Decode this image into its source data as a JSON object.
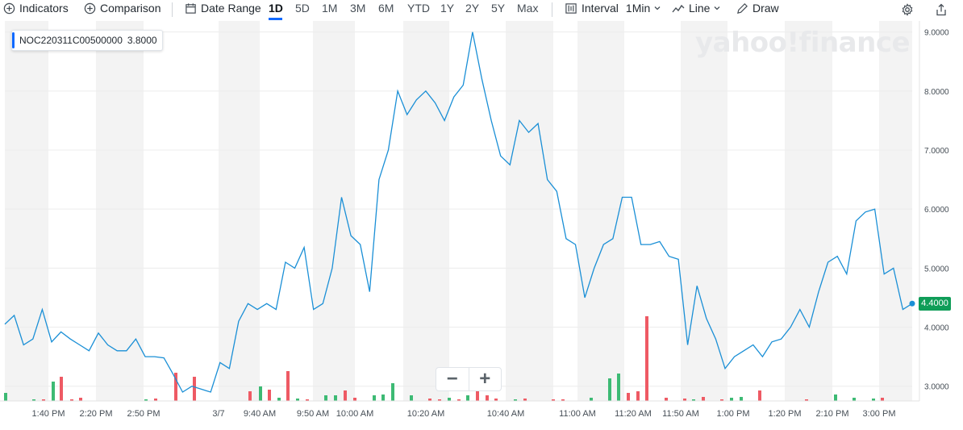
{
  "toolbar": {
    "indicators": "Indicators",
    "comparison": "Comparison",
    "date_range": "Date Range",
    "ranges": [
      "1D",
      "5D",
      "1M",
      "3M",
      "6M",
      "YTD",
      "1Y",
      "2Y",
      "5Y",
      "Max"
    ],
    "active_range": "1D",
    "interval_label": "Interval",
    "interval_value": "1Min",
    "chart_type": "Line",
    "draw": "Draw"
  },
  "legend": {
    "symbol": "NOC220311C00500000",
    "value": "3.8000"
  },
  "brand": "yahoo!finance",
  "last_price": "4.4000",
  "colors": {
    "line": "#1a8fd6",
    "up": "#3dba74",
    "down": "#ee5a64",
    "band": "#f3f3f3",
    "accent": "#0f69ff"
  },
  "chart_data": {
    "type": "line",
    "y_ticks": [
      "9.0000",
      "8.0000",
      "7.0000",
      "6.0000",
      "5.0000",
      "4.0000",
      "3.0000"
    ],
    "ylim": [
      2.75,
      9.05
    ],
    "x_ticks": [
      "1:40 PM",
      "2:20 PM",
      "2:50 PM",
      "3/7",
      "9:40 AM",
      "9:50 AM",
      "10:00 AM",
      "10:20 AM",
      "10:40 AM",
      "11:00 AM",
      "11:20 AM",
      "11:50 AM",
      "1:00 PM",
      "1:20 PM",
      "2:10 PM",
      "3:00 PM"
    ],
    "series": [
      {
        "values": [
          4.05,
          4.2,
          3.7,
          3.8,
          4.3,
          3.75,
          3.92,
          3.8,
          3.7,
          3.6,
          3.9,
          3.7,
          3.6,
          3.6,
          3.8,
          3.5,
          3.5,
          3.48,
          3.2,
          2.9,
          3.0,
          2.95,
          2.9,
          3.4,
          3.3,
          4.1,
          4.4,
          4.3,
          4.4,
          4.3,
          5.1,
          5.0,
          5.35,
          4.3,
          4.4,
          5.0,
          6.2,
          5.55,
          5.4,
          4.6,
          6.5,
          7.0,
          8.0,
          7.6,
          7.85,
          8.0,
          7.8,
          7.5,
          7.9,
          8.1,
          9.0,
          8.2,
          7.5,
          6.9,
          6.75,
          7.5,
          7.3,
          7.45,
          6.5,
          6.3,
          5.5,
          5.4,
          4.5,
          5.0,
          5.4,
          5.5,
          6.2,
          6.2,
          5.4,
          5.4,
          5.45,
          5.2,
          5.15,
          3.7,
          4.7,
          4.15,
          3.8,
          3.3,
          3.5,
          3.6,
          3.7,
          3.5,
          3.75,
          3.8,
          4.0,
          4.3,
          4.0,
          4.6,
          5.1,
          5.2,
          4.9,
          5.8,
          5.95,
          6.0,
          4.9,
          5.0,
          4.3,
          4.4
        ]
      }
    ],
    "volume": [
      {
        "x": 7,
        "h": 10,
        "up": true
      },
      {
        "x": 42,
        "h": 2,
        "up": true
      },
      {
        "x": 54,
        "h": 2,
        "up": false
      },
      {
        "x": 66,
        "h": 24,
        "up": true
      },
      {
        "x": 76,
        "h": 30,
        "up": false
      },
      {
        "x": 89,
        "h": 2,
        "up": false
      },
      {
        "x": 100,
        "h": 4,
        "up": false
      },
      {
        "x": 181,
        "h": 2,
        "up": true
      },
      {
        "x": 193,
        "h": 3,
        "up": false
      },
      {
        "x": 218,
        "h": 35,
        "up": false
      },
      {
        "x": 241,
        "h": 30,
        "up": false
      },
      {
        "x": 310,
        "h": 12,
        "up": false
      },
      {
        "x": 323,
        "h": 18,
        "up": true
      },
      {
        "x": 334,
        "h": 14,
        "up": false
      },
      {
        "x": 346,
        "h": 4,
        "up": true
      },
      {
        "x": 357,
        "h": 37,
        "up": false
      },
      {
        "x": 369,
        "h": 3,
        "up": true
      },
      {
        "x": 381,
        "h": 2,
        "up": false
      },
      {
        "x": 404,
        "h": 7,
        "up": true
      },
      {
        "x": 416,
        "h": 7,
        "up": true
      },
      {
        "x": 428,
        "h": 13,
        "up": false
      },
      {
        "x": 440,
        "h": 4,
        "up": false
      },
      {
        "x": 464,
        "h": 7,
        "up": true
      },
      {
        "x": 475,
        "h": 8,
        "up": true
      },
      {
        "x": 487,
        "h": 22,
        "up": true
      },
      {
        "x": 510,
        "h": 7,
        "up": true
      },
      {
        "x": 533,
        "h": 3,
        "up": false
      },
      {
        "x": 545,
        "h": 2,
        "up": false
      },
      {
        "x": 557,
        "h": 4,
        "up": true
      },
      {
        "x": 569,
        "h": 2,
        "up": false
      },
      {
        "x": 580,
        "h": 7,
        "up": true
      },
      {
        "x": 592,
        "h": 14,
        "up": false
      },
      {
        "x": 604,
        "h": 7,
        "up": false
      },
      {
        "x": 615,
        "h": 3,
        "up": false
      },
      {
        "x": 639,
        "h": 2,
        "up": true
      },
      {
        "x": 651,
        "h": 3,
        "up": false
      },
      {
        "x": 686,
        "h": 2,
        "up": false
      },
      {
        "x": 698,
        "h": 2,
        "up": false
      },
      {
        "x": 733,
        "h": 4,
        "up": true
      },
      {
        "x": 756,
        "h": 28,
        "up": true
      },
      {
        "x": 767,
        "h": 34,
        "up": true
      },
      {
        "x": 779,
        "h": 10,
        "up": false
      },
      {
        "x": 791,
        "h": 12,
        "up": false
      },
      {
        "x": 802,
        "h": 105,
        "up": false
      },
      {
        "x": 826,
        "h": 4,
        "up": false
      },
      {
        "x": 849,
        "h": 3,
        "up": false
      },
      {
        "x": 860,
        "h": 2,
        "up": true
      },
      {
        "x": 872,
        "h": 5,
        "up": false
      },
      {
        "x": 895,
        "h": 2,
        "up": false
      },
      {
        "x": 907,
        "h": 4,
        "up": true
      },
      {
        "x": 919,
        "h": 5,
        "up": true
      },
      {
        "x": 942,
        "h": 13,
        "up": false
      },
      {
        "x": 1000,
        "h": 2,
        "up": false
      },
      {
        "x": 1036,
        "h": 8,
        "up": true
      },
      {
        "x": 1059,
        "h": 4,
        "up": true
      },
      {
        "x": 1083,
        "h": 3,
        "up": true
      },
      {
        "x": 1094,
        "h": 4,
        "up": false
      }
    ]
  }
}
